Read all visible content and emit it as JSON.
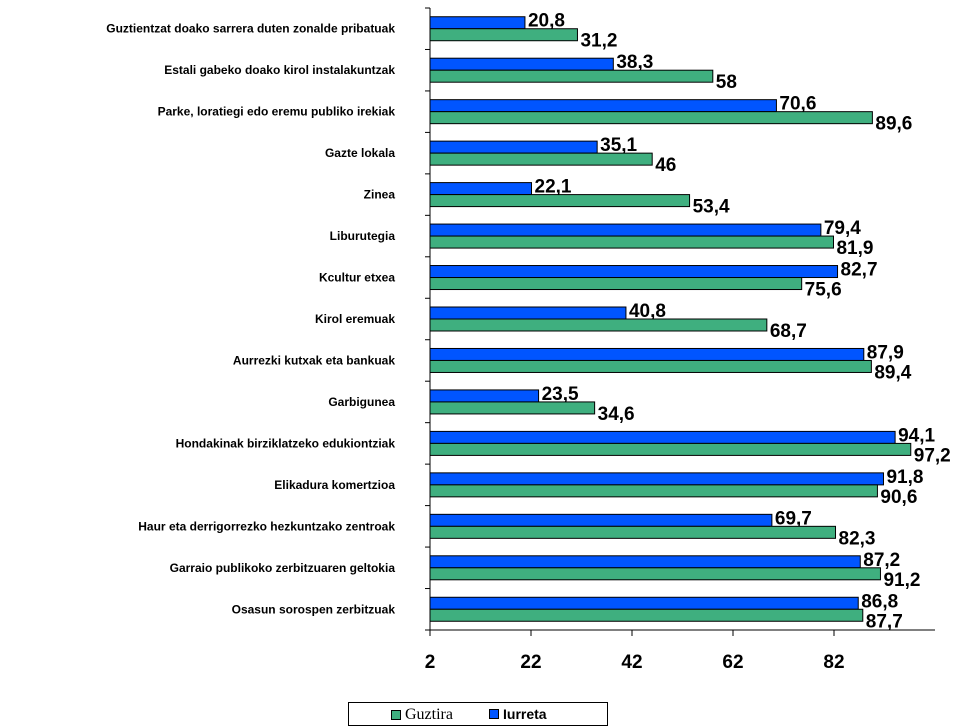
{
  "chart_data": {
    "type": "bar",
    "orientation": "horizontal",
    "categories": [
      "Guztientzat doako sarrera duten zonalde pribatuak",
      "Estali gabeko doako kirol instalakuntzak",
      "Parke, loratiegi edo eremu publiko irekiak",
      "Gazte lokala",
      "Zinea",
      "Liburutegia",
      "Kcultur etxea",
      "Kirol eremuak",
      "Aurrezki kutxak eta bankuak",
      "Garbigunea",
      "Hondakinak birziklatzeko edukiontziak",
      "Elikadura komertzioa",
      "Haur eta derrigorrezko hezkuntzako zentroak",
      "Garraio publikoko zerbitzuaren geltokia",
      "Osasun sorospen zerbitzuak"
    ],
    "series": [
      {
        "name": "Iurreta",
        "color": "#0055FF",
        "values": [
          20.8,
          38.3,
          70.6,
          35.1,
          22.1,
          79.4,
          82.7,
          40.8,
          87.9,
          23.5,
          94.1,
          91.8,
          69.7,
          87.2,
          86.8
        ],
        "labels": [
          "20,8",
          "38,3",
          "70,6",
          "35,1",
          "22,1",
          "79,4",
          "82,7",
          "40,8",
          "87,9",
          "23,5",
          "94,1",
          "91,8",
          "69,7",
          "87,2",
          "86,8"
        ]
      },
      {
        "name": "Guztira",
        "color": "#3FAF7F",
        "values": [
          31.2,
          58,
          89.6,
          46,
          53.4,
          81.9,
          75.6,
          68.7,
          89.4,
          34.6,
          97.2,
          90.6,
          82.3,
          91.2,
          87.7
        ],
        "labels": [
          "31,2",
          "58",
          "89,6",
          "46",
          "53,4",
          "81,9",
          "75,6",
          "68,7",
          "89,4",
          "34,6",
          "97,2",
          "90,6",
          "82,3",
          "91,2",
          "87,7"
        ]
      }
    ],
    "xticks": [
      2,
      22,
      42,
      62,
      82
    ],
    "xtick_labels": [
      "2",
      "22",
      "42",
      "62",
      "82"
    ],
    "xlim": [
      2,
      102
    ],
    "grid": false,
    "legend_position": "bottom-center"
  },
  "legend": {
    "items": [
      {
        "label": "Guztira",
        "color": "#3FAF7F"
      },
      {
        "label": "Iurreta",
        "color": "#0055FF"
      }
    ]
  }
}
